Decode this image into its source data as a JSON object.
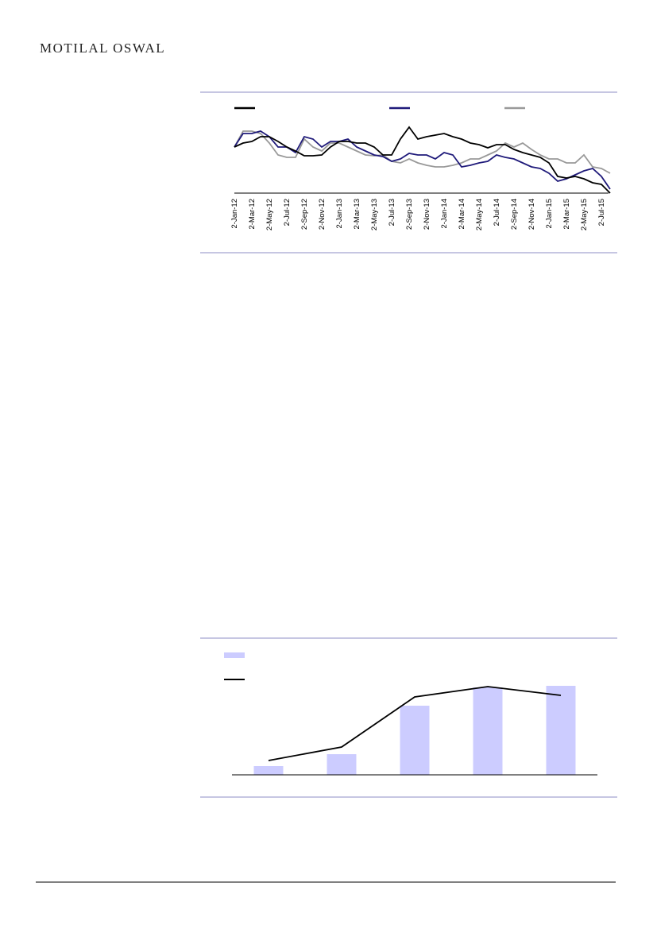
{
  "header": {
    "brand": "MOTILAL OSWAL"
  },
  "chart_data": [
    {
      "type": "line",
      "categories": [
        "2-Jan-12",
        null,
        "2-Mar-12",
        null,
        "2-May-12",
        null,
        "2-Jul-12",
        null,
        "2-Sep-12",
        null,
        "2-Nov-12",
        null,
        "2-Jan-13",
        null,
        "2-Mar-13",
        null,
        "2-May-13",
        null,
        "2-Jul-13",
        null,
        "2-Sep-13",
        null,
        "2-Nov-13",
        null,
        "2-Jan-14",
        null,
        "2-Mar-14",
        null,
        "2-May-14",
        null,
        "2-Jul-14",
        null,
        "2-Sep-14",
        null,
        "2-Nov-14",
        null,
        "2-Jan-15",
        null,
        "2-Mar-15",
        null,
        "2-May-15",
        null,
        "2-Jul-15",
        null
      ],
      "ylim": [
        0,
        85
      ],
      "series": [
        {
          "color": "#000000",
          "values": [
            58,
            63,
            65,
            71,
            71,
            65,
            58,
            53,
            47,
            47,
            48,
            58,
            65,
            65,
            63,
            63,
            58,
            48,
            48,
            68,
            83,
            68,
            71,
            73,
            75,
            71,
            68,
            63,
            61,
            57,
            61,
            61,
            55,
            51,
            48,
            45,
            38,
            21,
            19,
            21,
            18,
            13,
            11,
            0
          ]
        },
        {
          "color": "#1f1a7a",
          "values": [
            58,
            75,
            75,
            78,
            71,
            58,
            58,
            51,
            71,
            68,
            58,
            65,
            65,
            68,
            58,
            53,
            48,
            46,
            40,
            43,
            50,
            48,
            48,
            43,
            51,
            48,
            33,
            35,
            38,
            40,
            48,
            45,
            43,
            38,
            33,
            31,
            25,
            15,
            18,
            23,
            28,
            31,
            21,
            5
          ]
        },
        {
          "color": "#999999",
          "values": [
            58,
            78,
            78,
            75,
            63,
            48,
            45,
            45,
            68,
            58,
            53,
            63,
            63,
            58,
            53,
            48,
            47,
            48,
            40,
            38,
            43,
            38,
            35,
            33,
            33,
            35,
            38,
            43,
            43,
            48,
            53,
            63,
            58,
            63,
            55,
            48,
            43,
            43,
            38,
            38,
            48,
            33,
            31,
            25
          ]
        }
      ]
    },
    {
      "type": "bar_line",
      "categories": [
        null,
        null,
        null,
        null,
        null
      ],
      "ylim": [
        0,
        120
      ],
      "series": [
        {
          "type": "bar",
          "color": "#ccccff",
          "values": [
            11,
            26,
            87,
            110,
            112
          ]
        },
        {
          "type": "line",
          "color": "#000000",
          "values": [
            18,
            35,
            98,
            111,
            100
          ]
        }
      ]
    }
  ]
}
